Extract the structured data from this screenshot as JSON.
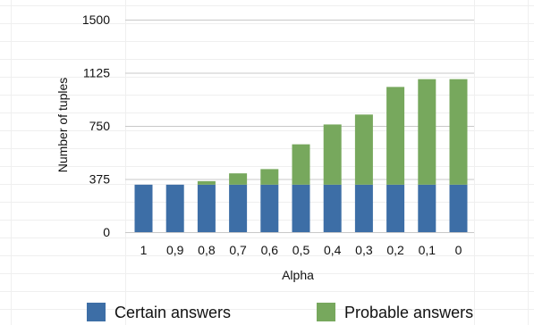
{
  "chart_data": {
    "type": "bar",
    "stacked": true,
    "title": "",
    "xlabel": "Alpha",
    "ylabel": "Number of tuples",
    "categories": [
      "1",
      "0,9",
      "0,8",
      "0,7",
      "0,6",
      "0,5",
      "0,4",
      "0,3",
      "0,2",
      "0,1",
      "0"
    ],
    "series": [
      {
        "name": "Certain answers",
        "color": "#3d6ea6",
        "values": [
          335,
          335,
          335,
          335,
          335,
          335,
          335,
          335,
          335,
          335,
          335
        ]
      },
      {
        "name": "Probable answers",
        "color": "#77a85d",
        "values": [
          0,
          0,
          25,
          80,
          110,
          285,
          425,
          495,
          690,
          745,
          745
        ]
      }
    ],
    "ylim": [
      0,
      1500
    ],
    "yticks": [
      "1500",
      "1125",
      "750",
      "375",
      "0"
    ],
    "grid": true,
    "legend": "bottom"
  }
}
